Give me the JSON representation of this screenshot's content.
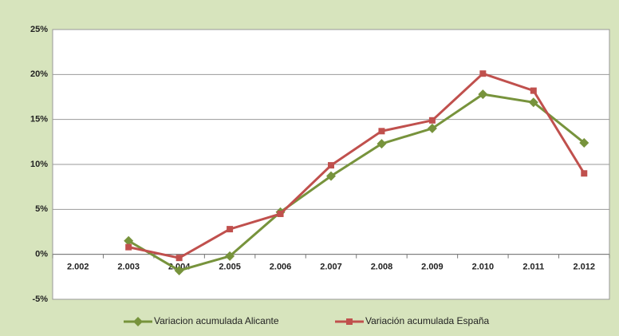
{
  "chart_data": {
    "type": "line",
    "categories": [
      "2.002",
      "2.003",
      "2.004",
      "2.005",
      "2.006",
      "2.007",
      "2.008",
      "2.009",
      "2.010",
      "2.011",
      "2.012"
    ],
    "series": [
      {
        "name": "Variacion acumulada  Alicante",
        "color": "#77933c",
        "marker": "diamond",
        "values": [
          null,
          1.5,
          -1.8,
          -0.2,
          4.7,
          8.7,
          12.3,
          14.0,
          17.8,
          16.9,
          12.4
        ]
      },
      {
        "name": "Variación acumulada  España",
        "color": "#c0504d",
        "marker": "square",
        "values": [
          null,
          0.8,
          -0.4,
          2.8,
          4.5,
          9.9,
          13.7,
          14.9,
          20.1,
          18.2,
          9.0
        ]
      }
    ],
    "ylim": [
      -5,
      25
    ],
    "yticks": [
      {
        "value": -5,
        "label": "-5%"
      },
      {
        "value": 0,
        "label": "0%"
      },
      {
        "value": 5,
        "label": "5%"
      },
      {
        "value": 10,
        "label": "10%"
      },
      {
        "value": 15,
        "label": "15%"
      },
      {
        "value": 20,
        "label": "20%"
      },
      {
        "value": 25,
        "label": "25%"
      }
    ],
    "grid": true,
    "legend": "bottom"
  }
}
